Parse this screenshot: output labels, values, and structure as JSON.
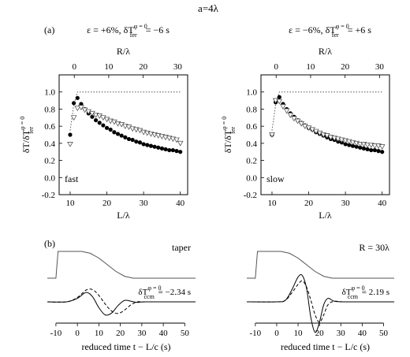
{
  "figure": {
    "title": "a=4λ",
    "part_a_label": "(a)",
    "part_b_label": "(b)"
  },
  "chart_data": [
    {
      "type": "scatter",
      "panel": "a-left",
      "heading": "ε = +6%, δT",
      "heading_sup": "φ = 0",
      "heading_sub": "fer",
      "heading_tail": " = −6 s",
      "annotation": "fast",
      "xlabel": "L/λ",
      "ylabel": "δT/δT",
      "ylabel_sup": "φ = 0",
      "ylabel_sub": "fer",
      "top_xlabel": "R/λ",
      "xlim": [
        7,
        42
      ],
      "ylim": [
        -0.2,
        1.2
      ],
      "xticks": [
        10,
        20,
        30,
        40
      ],
      "yticks": [
        -0.2,
        0.0,
        0.2,
        0.4,
        0.6,
        0.8,
        1.0
      ],
      "top_xticks": [
        0,
        10,
        20,
        30
      ],
      "top_xlim": [
        -4.4,
        32.9
      ],
      "series": [
        {
          "marker": "filled-circle",
          "x": [
            10,
            11,
            12,
            13,
            14,
            15,
            16,
            17,
            18,
            19,
            20,
            21,
            22,
            23,
            24,
            25,
            26,
            27,
            28,
            29,
            30,
            31,
            32,
            33,
            34,
            35,
            36,
            37,
            38,
            39,
            40
          ],
          "y": [
            0.5,
            0.87,
            0.93,
            0.86,
            0.8,
            0.75,
            0.71,
            0.67,
            0.64,
            0.61,
            0.58,
            0.56,
            0.53,
            0.51,
            0.49,
            0.47,
            0.45,
            0.44,
            0.42,
            0.41,
            0.39,
            0.38,
            0.37,
            0.36,
            0.35,
            0.34,
            0.33,
            0.32,
            0.32,
            0.31,
            0.3
          ]
        },
        {
          "marker": "open-triangle-down",
          "x": [
            10,
            11,
            12,
            13,
            14,
            15,
            16,
            17,
            18,
            19,
            20,
            21,
            22,
            23,
            24,
            25,
            26,
            27,
            28,
            29,
            30,
            31,
            32,
            33,
            34,
            35,
            36,
            37,
            38,
            39,
            40
          ],
          "y": [
            0.39,
            0.7,
            0.81,
            0.82,
            0.79,
            0.77,
            0.75,
            0.73,
            0.72,
            0.7,
            0.68,
            0.66,
            0.65,
            0.63,
            0.62,
            0.6,
            0.59,
            0.57,
            0.56,
            0.55,
            0.53,
            0.52,
            0.51,
            0.5,
            0.49,
            0.48,
            0.47,
            0.46,
            0.45,
            0.44,
            0.4
          ]
        },
        {
          "marker": "dotted-line",
          "x": [
            10,
            11,
            12,
            13,
            40
          ],
          "y": [
            0.55,
            0.85,
            1.0,
            1.0,
            1.0
          ]
        }
      ]
    },
    {
      "type": "scatter",
      "panel": "a-right",
      "heading": "ε = −6%, δT",
      "heading_sup": "φ = 0",
      "heading_sub": "fer",
      "heading_tail": " = +6 s",
      "annotation": "slow",
      "xlabel": "L/λ",
      "ylabel": "δT/δT",
      "ylabel_sup": "φ = 0",
      "ylabel_sub": "fer",
      "top_xlabel": "R/λ",
      "xlim": [
        7,
        42
      ],
      "ylim": [
        -0.2,
        1.2
      ],
      "xticks": [
        10,
        20,
        30,
        40
      ],
      "yticks": [
        -0.2,
        0.0,
        0.2,
        0.4,
        0.6,
        0.8,
        1.0
      ],
      "top_xticks": [
        0,
        10,
        20,
        30
      ],
      "top_xlim": [
        -4.4,
        32.9
      ],
      "series": [
        {
          "marker": "filled-circle",
          "x": [
            10,
            11,
            12,
            13,
            14,
            15,
            16,
            17,
            18,
            19,
            20,
            21,
            22,
            23,
            24,
            25,
            26,
            27,
            28,
            29,
            30,
            31,
            32,
            33,
            34,
            35,
            36,
            37,
            38,
            39,
            40
          ],
          "y": [
            0.5,
            0.88,
            0.94,
            0.86,
            0.8,
            0.75,
            0.71,
            0.67,
            0.64,
            0.61,
            0.58,
            0.56,
            0.53,
            0.51,
            0.49,
            0.47,
            0.45,
            0.44,
            0.42,
            0.41,
            0.39,
            0.38,
            0.37,
            0.36,
            0.35,
            0.34,
            0.33,
            0.32,
            0.32,
            0.31,
            0.3
          ]
        },
        {
          "marker": "open-triangle-down",
          "x": [
            10,
            11,
            12,
            13,
            14,
            15,
            16,
            17,
            18,
            19,
            20,
            21,
            22,
            23,
            24,
            25,
            26,
            27,
            28,
            29,
            30,
            31,
            32,
            33,
            34,
            35,
            36,
            37,
            38,
            39,
            40
          ],
          "y": [
            0.5,
            0.9,
            0.89,
            0.83,
            0.78,
            0.73,
            0.69,
            0.66,
            0.63,
            0.6,
            0.58,
            0.56,
            0.54,
            0.52,
            0.5,
            0.49,
            0.47,
            0.46,
            0.45,
            0.44,
            0.43,
            0.42,
            0.41,
            0.4,
            0.39,
            0.39,
            0.38,
            0.38,
            0.37,
            0.37,
            0.36
          ]
        },
        {
          "marker": "dotted-line",
          "x": [
            10,
            11,
            12,
            13,
            40
          ],
          "y": [
            0.55,
            0.85,
            1.0,
            1.0,
            1.0
          ]
        }
      ]
    },
    {
      "type": "line",
      "panel": "b-left",
      "label_text": "taper",
      "annotation_prefix": "δT",
      "annotation_sup": "φ = 0",
      "annotation_sub": "ccm",
      "annotation_value": " = −2.34 s",
      "xlabel": "reduced time t − L/c (s)",
      "xlim": [
        -14,
        55
      ],
      "xticks": [
        -10,
        0,
        10,
        20,
        30,
        40,
        50
      ],
      "series": [
        {
          "style": "solid",
          "role": "taper",
          "x": [
            -14,
            -10,
            -9,
            -8,
            2,
            6,
            10,
            14,
            18,
            22,
            26,
            30,
            33,
            55
          ],
          "y": [
            0,
            0,
            1,
            1,
            1,
            0.93,
            0.75,
            0.5,
            0.25,
            0.07,
            0,
            0,
            0,
            0
          ]
        },
        {
          "style": "solid",
          "role": "waveform",
          "x": [
            -14,
            -5,
            0,
            4,
            7,
            10,
            13,
            16,
            19,
            22,
            25,
            28,
            32,
            55
          ],
          "y": [
            0,
            0,
            0.12,
            0.32,
            0.18,
            -0.2,
            -0.45,
            -0.38,
            -0.12,
            0.05,
            0.02,
            -0.02,
            0,
            0
          ]
        },
        {
          "style": "dashed",
          "role": "waveform",
          "x": [
            -14,
            -5,
            0,
            4,
            7,
            10,
            13,
            16,
            19,
            22,
            25,
            28,
            32,
            55
          ],
          "y": [
            0,
            0,
            0.15,
            0.4,
            0.42,
            0.22,
            -0.08,
            -0.32,
            -0.4,
            -0.28,
            -0.1,
            0,
            0,
            0
          ]
        }
      ]
    },
    {
      "type": "line",
      "panel": "b-right",
      "label_text": "R = 30λ",
      "annotation_prefix": "δT",
      "annotation_sup": "φ = 0",
      "annotation_sub": "ccm",
      "annotation_value": " = 2.19 s",
      "xlabel": "reduced time t − L/c (s)",
      "xlim": [
        -14,
        55
      ],
      "xticks": [
        -10,
        0,
        10,
        20,
        30,
        40,
        50
      ],
      "series": [
        {
          "style": "solid",
          "role": "taper",
          "x": [
            -14,
            -10,
            -9,
            -8,
            2,
            6,
            10,
            14,
            18,
            22,
            26,
            30,
            33,
            55
          ],
          "y": [
            0,
            0,
            1,
            1,
            1,
            0.93,
            0.75,
            0.5,
            0.25,
            0.07,
            0,
            0,
            0,
            0
          ]
        },
        {
          "style": "solid",
          "role": "waveform",
          "x": [
            -14,
            0,
            4,
            7,
            10,
            12,
            14,
            16,
            18,
            20,
            22,
            24,
            27,
            32,
            55
          ],
          "y": [
            0,
            0,
            0.05,
            0.4,
            0.85,
            0.9,
            0.45,
            -0.55,
            -1.05,
            -0.7,
            -0.1,
            0.12,
            0.02,
            0,
            0
          ]
        },
        {
          "style": "dashed",
          "role": "waveform",
          "x": [
            -14,
            0,
            4,
            7,
            10,
            12,
            14,
            16,
            18,
            20,
            22,
            24,
            27,
            32,
            55
          ],
          "y": [
            0,
            0,
            0.05,
            0.3,
            0.6,
            0.72,
            0.5,
            0.05,
            -0.45,
            -0.7,
            -0.45,
            -0.1,
            0.02,
            0,
            0
          ]
        }
      ]
    }
  ]
}
